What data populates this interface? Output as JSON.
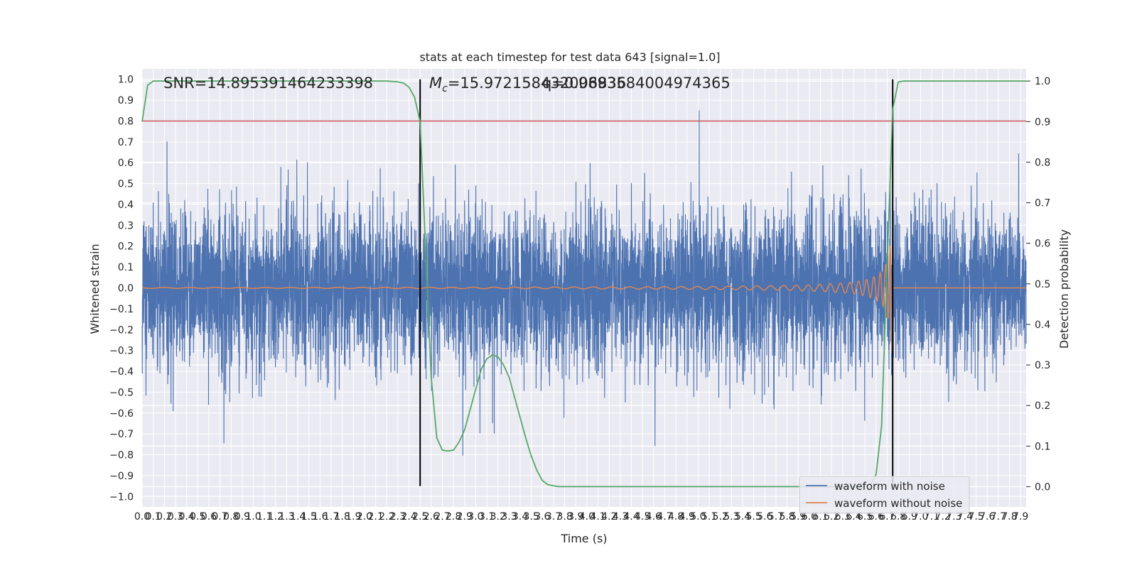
{
  "chart_data": {
    "type": "line",
    "title": "stats at each timestep for test data 643 [signal=1.0]",
    "xlabel": "Time (s)",
    "ylabel": "Whitened strain",
    "y2label": "Detection probability",
    "xlim": [
      0.0,
      7.95
    ],
    "ylim": [
      -1.05,
      1.05
    ],
    "y2lim": [
      -0.05,
      1.03
    ],
    "grid": true,
    "legend_position": "lower-right",
    "colors": {
      "noise": "#4c72b0",
      "signal": "#dd8452",
      "prob": "#55a868",
      "threshold": "#c44e52",
      "bounds": "#000000",
      "background": "#eaeaf2"
    },
    "annotations": {
      "snr": "SNR=14.895391464233398",
      "mc_symbol": "M",
      "mc_sub": "c",
      "mc_text": "=15.972158432006836",
      "q_text": "q=0.9893584004974365"
    },
    "legend": [
      "waveform with noise",
      "waveform without noise"
    ],
    "x_ticks": [
      "0.0",
      "0.1",
      "0.2",
      "0.3",
      "0.4",
      "0.5",
      "0.6",
      "0.7",
      "0.8",
      "0.9",
      "1.0",
      "1.1",
      "1.2",
      "1.3",
      "1.4",
      "1.5",
      "1.6",
      "1.7",
      "1.8",
      "1.9",
      "2.0",
      "2.1",
      "2.2",
      "2.3",
      "2.4",
      "2.5",
      "2.6",
      "2.7",
      "2.8",
      "2.9",
      "3.0",
      "3.1",
      "3.2",
      "3.3",
      "3.4",
      "3.5",
      "3.6",
      "3.7",
      "3.8",
      "3.9",
      "4.0",
      "4.1",
      "4.2",
      "4.3",
      "4.4",
      "4.5",
      "4.6",
      "4.7",
      "4.8",
      "4.9",
      "5.0",
      "5.1",
      "5.2",
      "5.3",
      "5.4",
      "5.5",
      "5.6",
      "5.7",
      "5.8",
      "5.9",
      "6.0",
      "6.1",
      "6.2",
      "6.3",
      "6.4",
      "6.5",
      "6.6",
      "6.7",
      "6.8",
      "6.9",
      "7.0",
      "7.1",
      "7.2",
      "7.3",
      "7.4",
      "7.5",
      "7.6",
      "7.7",
      "7.8",
      "7.9"
    ],
    "y_ticks": [
      "1.0",
      "0.9",
      "0.8",
      "0.7",
      "0.6",
      "0.5",
      "0.4",
      "0.3",
      "0.2",
      "0.1",
      "0.0",
      "−0.1",
      "−0.2",
      "−0.3",
      "−0.4",
      "−0.5",
      "−0.6",
      "−0.7",
      "−0.8",
      "−0.9",
      "−1.0"
    ],
    "y2_ticks": [
      "1.0",
      "0.9",
      "0.8",
      "0.7",
      "0.6",
      "0.5",
      "0.4",
      "0.3",
      "0.2",
      "0.1",
      "0.0"
    ],
    "threshold_y": 0.8,
    "signal_bounds_x": [
      2.5,
      6.75
    ],
    "detection_probability": {
      "x": [
        0.0,
        0.05,
        0.1,
        0.15,
        0.2,
        0.25,
        0.3,
        0.4,
        0.5,
        1.0,
        1.5,
        2.0,
        2.2,
        2.3,
        2.35,
        2.4,
        2.45,
        2.5,
        2.55,
        2.6,
        2.65,
        2.7,
        2.75,
        2.8,
        2.85,
        2.9,
        2.95,
        3.0,
        3.05,
        3.1,
        3.15,
        3.2,
        3.25,
        3.3,
        3.35,
        3.4,
        3.45,
        3.5,
        3.55,
        3.6,
        3.65,
        3.7,
        3.75,
        3.8,
        3.85,
        3.9,
        3.95,
        4.0,
        5.0,
        6.0,
        6.4,
        6.5,
        6.55,
        6.6,
        6.65,
        6.7,
        6.75,
        6.8,
        6.85,
        6.9,
        7.0,
        7.5,
        7.95
      ],
      "y": [
        0.9,
        0.99,
        1.0,
        1.0,
        1.0,
        1.0,
        1.0,
        1.0,
        1.0,
        1.0,
        1.0,
        1.0,
        1.0,
        0.998,
        0.995,
        0.985,
        0.96,
        0.9,
        0.58,
        0.27,
        0.12,
        0.09,
        0.088,
        0.09,
        0.11,
        0.14,
        0.19,
        0.24,
        0.29,
        0.315,
        0.325,
        0.32,
        0.3,
        0.27,
        0.22,
        0.17,
        0.12,
        0.075,
        0.04,
        0.015,
        0.005,
        0.002,
        0.0,
        0.0,
        0.0,
        0.0,
        0.0,
        0.0,
        0.0,
        0.0,
        0.0,
        0.0,
        0.005,
        0.03,
        0.15,
        0.55,
        0.93,
        0.998,
        1.0,
        1.0,
        1.0,
        1.0,
        1.0
      ]
    }
  }
}
